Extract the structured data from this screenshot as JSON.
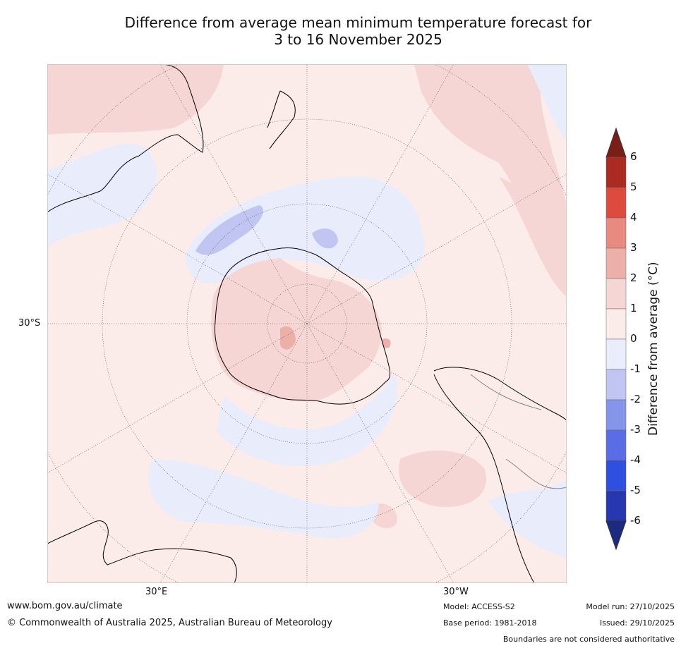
{
  "title_line1": "Difference from average mean minimum temperature forecast for",
  "title_line2": "3 to 16 November 2025",
  "axis_labels": {
    "lat": "30°S",
    "lon_left": "30°E",
    "lon_right": "30°W"
  },
  "colorbar": {
    "label": "Difference from average (°C)",
    "ticks": [
      "6",
      "5",
      "4",
      "3",
      "2",
      "1",
      "0",
      "-1",
      "-2",
      "-3",
      "-4",
      "-5",
      "-6"
    ],
    "colors": [
      "#7a1f18",
      "#ab2a22",
      "#dd4a3e",
      "#e98a80",
      "#edb0a9",
      "#f5d6d4",
      "#fbecea",
      "#e9ecfb",
      "#c0c6f1",
      "#8595ea",
      "#5a6de4",
      "#2f4fe0",
      "#2637b0",
      "#1c2a80"
    ]
  },
  "footer": {
    "url": "www.bom.gov.au/climate",
    "copyright": "© Commonwealth of Australia 2025, Australian Bureau of Meteorology",
    "model": "Model: ACCESS-S2",
    "base_period": "Base period: 1981-2018",
    "model_run": "Model run: 27/10/2025",
    "issued": "Issued: 29/10/2025",
    "disclaimer": "Boundaries are not considered authoritative"
  }
}
